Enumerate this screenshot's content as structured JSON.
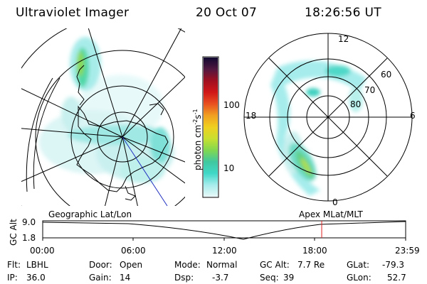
{
  "header": {
    "instrument": "Ultraviolet Imager",
    "date": "20 Oct 07",
    "time": "18:26:56 UT"
  },
  "colorbar": {
    "label": "photon cm",
    "label_sup1": "-2",
    "label_s": "s",
    "label_sup2": "-1",
    "ticks": [
      "100",
      "10"
    ],
    "colors": [
      "#e8f8f8",
      "#a8ecec",
      "#40d8c8",
      "#40c8a0",
      "#80d850",
      "#c8e030",
      "#f0d020",
      "#f0a020",
      "#e85020",
      "#d01818",
      "#a01020",
      "#501840",
      "#100830"
    ]
  },
  "polar_plot": {
    "latitude_labels": [
      "60",
      "70",
      "80"
    ],
    "mlt_labels": {
      "top": "12",
      "left": "18",
      "right": "6",
      "bottom": "0"
    }
  },
  "timeline": {
    "left_title": "Geographic Lat/Lon",
    "right_title": "Apex MLat/MLT",
    "axis_label": "GC Alt",
    "y_ticks": [
      "9.0",
      "1.8"
    ],
    "x_ticks": [
      "00:00",
      "06:00",
      "12:00",
      "18:00",
      "23:59"
    ],
    "current_time_fraction": 0.7687
  },
  "info": {
    "filter_label": "Flt:",
    "filter_value": "LBHL",
    "ip_label": "IP:",
    "ip_value": "36.0",
    "door_label": "Door:",
    "door_value": "Open",
    "gain_label": "Gain:",
    "gain_value": "14",
    "mode_label": "Mode:",
    "mode_value": "Normal",
    "dsp_label": "Dsp:",
    "dsp_value": "-3.7",
    "gcalt_label": "GC Alt:",
    "gcalt_value": "7.7 Re",
    "seq_label": "Seq:",
    "seq_value": "39",
    "glat_label": "GLat:",
    "glat_value": "-79.3",
    "glon_label": "GLon:",
    "glon_value": "52.7"
  }
}
